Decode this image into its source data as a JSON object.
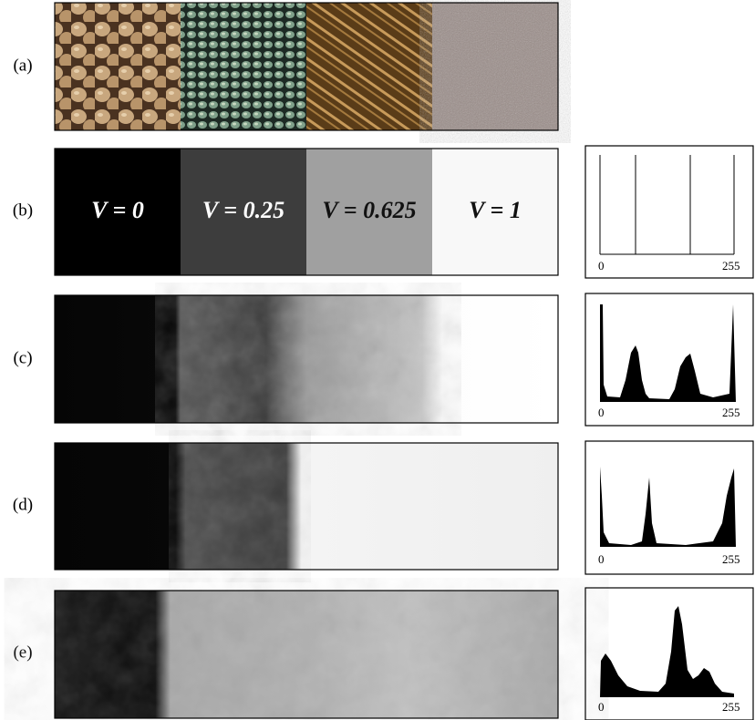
{
  "panels": [
    {
      "label": "(a)"
    },
    {
      "label": "(b)",
      "region_labels": [
        "V = 0",
        "V = 0.25",
        "V = 0.625",
        "V = 1"
      ],
      "histogram": {
        "min_label": "0",
        "max_label": "255"
      }
    },
    {
      "label": "(c)",
      "histogram": {
        "min_label": "0",
        "max_label": "255"
      }
    },
    {
      "label": "(d)",
      "histogram": {
        "min_label": "0",
        "max_label": "255"
      }
    },
    {
      "label": "(e)",
      "histogram": {
        "min_label": "0",
        "max_label": "255"
      }
    }
  ]
}
